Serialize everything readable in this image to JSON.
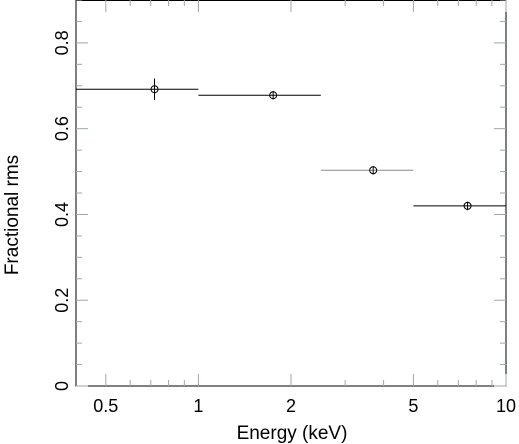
{
  "chart_data": {
    "type": "scatter",
    "xlabel": "Energy (keV)",
    "ylabel": "Fractional rms",
    "x_scale": "log",
    "xlim": [
      0.4,
      10
    ],
    "ylim": [
      0,
      0.9
    ],
    "x_ticks": [
      {
        "value": 0.5,
        "label": "0.5"
      },
      {
        "value": 1,
        "label": "1"
      },
      {
        "value": 2,
        "label": "2"
      },
      {
        "value": 5,
        "label": "5"
      },
      {
        "value": 10,
        "label": "10"
      }
    ],
    "y_ticks": [
      {
        "value": 0,
        "label": "0"
      },
      {
        "value": 0.2,
        "label": "0.2"
      },
      {
        "value": 0.4,
        "label": "0.4"
      },
      {
        "value": 0.6,
        "label": "0.6"
      },
      {
        "value": 0.8,
        "label": "0.8"
      }
    ],
    "grid": false,
    "series": [
      {
        "points": [
          {
            "x": 0.72,
            "y": 0.692,
            "x_low": 0.4,
            "x_high": 1.0,
            "y_err": 0.025,
            "color": "#000000"
          },
          {
            "x": 1.75,
            "y": 0.678,
            "x_low": 1.0,
            "x_high": 2.5,
            "y_err": 0.01,
            "color": "#000000"
          },
          {
            "x": 3.7,
            "y": 0.503,
            "x_low": 2.5,
            "x_high": 5.0,
            "y_err": 0.01,
            "color": "#8a8a8a"
          },
          {
            "x": 7.5,
            "y": 0.42,
            "x_low": 5.0,
            "x_high": 10.0,
            "y_err": 0.01,
            "color": "#000000"
          }
        ]
      }
    ]
  }
}
